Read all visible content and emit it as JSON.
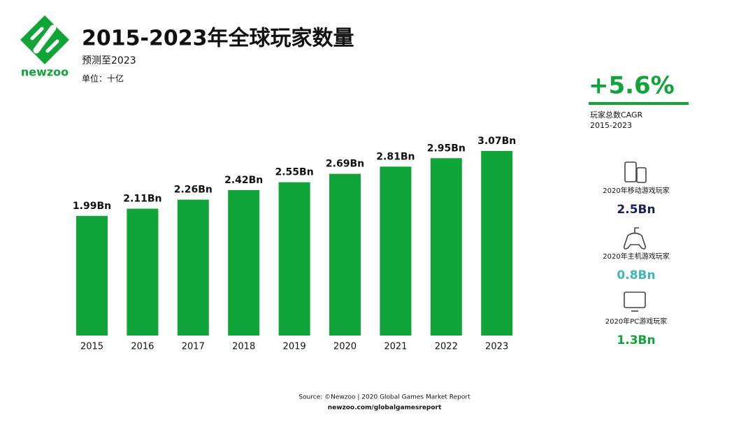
{
  "brand": "newzoo",
  "chart_data": {
    "type": "bar",
    "title": "2015-2023年全球玩家数量",
    "subtitle": "预测至2023",
    "unit_note": "单位：十亿",
    "categories": [
      "2015",
      "2016",
      "2017",
      "2018",
      "2019",
      "2020",
      "2021",
      "2022",
      "2023"
    ],
    "values": [
      1.99,
      2.11,
      2.26,
      2.42,
      2.55,
      2.69,
      2.81,
      2.95,
      3.07
    ],
    "value_labels": [
      "1.99Bn",
      "2.11Bn",
      "2.26Bn",
      "2.42Bn",
      "2.55Bn",
      "2.69Bn",
      "2.81Bn",
      "2.95Bn",
      "3.07Bn"
    ],
    "color": "#0fa539"
  },
  "sidebar": {
    "cagr": "+5.6%",
    "cagr_label": "玩家总数CAGR",
    "cagr_period": "2015-2023",
    "stats": [
      {
        "label": "2020年移动游戏玩家",
        "value": "2.5Bn",
        "color": "#1c2057"
      },
      {
        "label": "2020年主机游戏玩家",
        "value": "0.8Bn",
        "color": "#3fb8b0"
      },
      {
        "label": "2020年PC游戏玩家",
        "value": "1.3Bn",
        "color": "#0fa539"
      }
    ]
  },
  "footer": {
    "source": "Source: ©Newzoo | 2020 Global Games Market Report",
    "url": "newzoo.com/globalgamesreport"
  }
}
